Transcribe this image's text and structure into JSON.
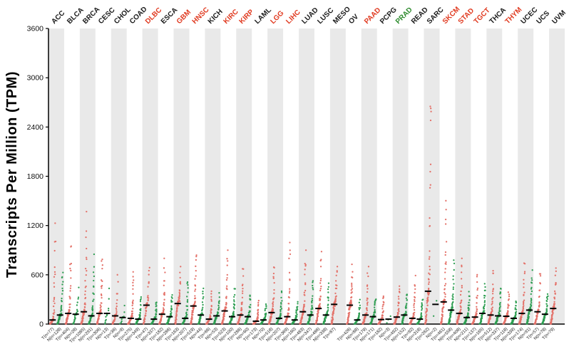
{
  "chart_data": {
    "type": "scatter",
    "title": "",
    "ylabel": "Transcripts Per Million (TPM)",
    "ylim": [
      0,
      3600
    ],
    "yticks": [
      0,
      600,
      1200,
      1800,
      2400,
      3000,
      3600
    ],
    "grid": "alternating-vertical-bands",
    "legend": "none",
    "colors": {
      "tumor_dot": "#e4726a",
      "normal_dot": "#2e9e52",
      "median_bar": "#000000",
      "band": "#e9e9e9",
      "label_red": "#e03a20",
      "label_green": "#2e8b2e",
      "label_black": "#1a1a1a",
      "tick_text": "#111111",
      "bottom_label": "#222222"
    },
    "categories": [
      {
        "name": "ACC",
        "label_color": "black",
        "tumor": {
          "label": "T(n=77)",
          "n": 77,
          "median": 50,
          "max": 1250
        },
        "normal": {
          "label": "N(n=128)",
          "n": 128,
          "median": 110,
          "max": 700
        }
      },
      {
        "name": "BLCA",
        "label_color": "black",
        "tumor": {
          "label": "T(n=404)",
          "n": 404,
          "median": 130,
          "max": 1000
        },
        "normal": {
          "label": "N(n=28)",
          "n": 28,
          "median": 120,
          "max": 450
        }
      },
      {
        "name": "BRCA",
        "label_color": "black",
        "tumor": {
          "label": "T(n=1085)",
          "n": 1085,
          "median": 150,
          "max": 1400
        },
        "normal": {
          "label": "N(n=291)",
          "n": 291,
          "median": 100,
          "max": 850
        }
      },
      {
        "name": "CESC",
        "label_color": "black",
        "tumor": {
          "label": "T(n=306)",
          "n": 306,
          "median": 130,
          "max": 900
        },
        "normal": {
          "label": "N(n=13)",
          "n": 13,
          "median": 130,
          "max": 500
        }
      },
      {
        "name": "CHOL",
        "label_color": "black",
        "tumor": {
          "label": "T(n=36)",
          "n": 36,
          "median": 100,
          "max": 600
        },
        "normal": {
          "label": "N(n=9)",
          "n": 9,
          "median": 80,
          "max": 300
        }
      },
      {
        "name": "COAD",
        "label_color": "black",
        "tumor": {
          "label": "T(n=275)",
          "n": 275,
          "median": 70,
          "max": 700
        },
        "normal": {
          "label": "N(n=349)",
          "n": 349,
          "median": 60,
          "max": 350
        }
      },
      {
        "name": "DLBC",
        "label_color": "red",
        "tumor": {
          "label": "T(n=47)",
          "n": 47,
          "median": 230,
          "max": 800
        },
        "normal": {
          "label": "N(n=337)",
          "n": 337,
          "median": 60,
          "max": 300
        }
      },
      {
        "name": "ESCA",
        "label_color": "black",
        "tumor": {
          "label": "T(n=182)",
          "n": 182,
          "median": 120,
          "max": 800
        },
        "normal": {
          "label": "N(n=286)",
          "n": 286,
          "median": 90,
          "max": 400
        }
      },
      {
        "name": "GBM",
        "label_color": "red",
        "tumor": {
          "label": "T(n=163)",
          "n": 163,
          "median": 250,
          "max": 700
        },
        "normal": {
          "label": "N(n=207)",
          "n": 207,
          "median": 70,
          "max": 600
        }
      },
      {
        "name": "HNSC",
        "label_color": "red",
        "tumor": {
          "label": "T(n=519)",
          "n": 519,
          "median": 220,
          "max": 950
        },
        "normal": {
          "label": "N(n=44)",
          "n": 44,
          "median": 110,
          "max": 500
        }
      },
      {
        "name": "KICH",
        "label_color": "black",
        "tumor": {
          "label": "T(n=66)",
          "n": 66,
          "median": 60,
          "max": 400
        },
        "normal": {
          "label": "N(n=53)",
          "n": 53,
          "median": 100,
          "max": 380
        }
      },
      {
        "name": "KIRC",
        "label_color": "red",
        "tumor": {
          "label": "T(n=523)",
          "n": 523,
          "median": 160,
          "max": 900
        },
        "normal": {
          "label": "N(n=100)",
          "n": 100,
          "median": 90,
          "max": 450
        }
      },
      {
        "name": "KIRP",
        "label_color": "red",
        "tumor": {
          "label": "T(n=286)",
          "n": 286,
          "median": 110,
          "max": 700
        },
        "normal": {
          "label": "N(n=60)",
          "n": 60,
          "median": 90,
          "max": 400
        }
      },
      {
        "name": "LAML",
        "label_color": "black",
        "tumor": {
          "label": "T(n=173)",
          "n": 173,
          "median": 35,
          "max": 300
        },
        "normal": {
          "label": "N(n=70)",
          "n": 70,
          "median": 50,
          "max": 250
        }
      },
      {
        "name": "LGG",
        "label_color": "red",
        "tumor": {
          "label": "T(n=518)",
          "n": 518,
          "median": 140,
          "max": 750
        },
        "normal": {
          "label": "N(n=207)",
          "n": 207,
          "median": 70,
          "max": 400
        }
      },
      {
        "name": "LIHC",
        "label_color": "red",
        "tumor": {
          "label": "T(n=369)",
          "n": 369,
          "median": 90,
          "max": 1050
        },
        "normal": {
          "label": "N(n=160)",
          "n": 160,
          "median": 50,
          "max": 300
        }
      },
      {
        "name": "LUAD",
        "label_color": "black",
        "tumor": {
          "label": "T(n=483)",
          "n": 483,
          "median": 150,
          "max": 900
        },
        "normal": {
          "label": "N(n=347)",
          "n": 347,
          "median": 110,
          "max": 600
        }
      },
      {
        "name": "LUSC",
        "label_color": "black",
        "tumor": {
          "label": "T(n=486)",
          "n": 486,
          "median": 190,
          "max": 900
        },
        "normal": {
          "label": "N(n=338)",
          "n": 338,
          "median": 110,
          "max": 500
        }
      },
      {
        "name": "MESO",
        "label_color": "black",
        "tumor": {
          "label": "T(n=87)",
          "n": 87,
          "median": 240,
          "max": 700
        },
        "normal": null
      },
      {
        "name": "OV",
        "label_color": "black",
        "tumor": {
          "label": "T(n=426)",
          "n": 426,
          "median": 230,
          "max": 750
        },
        "normal": {
          "label": "N(n=88)",
          "n": 88,
          "median": 50,
          "max": 300
        }
      },
      {
        "name": "PAAD",
        "label_color": "red",
        "tumor": {
          "label": "T(n=179)",
          "n": 179,
          "median": 110,
          "max": 700
        },
        "normal": {
          "label": "N(n=171)",
          "n": 171,
          "median": 90,
          "max": 350
        }
      },
      {
        "name": "PCPG",
        "label_color": "black",
        "tumor": {
          "label": "T(n=182)",
          "n": 182,
          "median": 55,
          "max": 400
        },
        "normal": {
          "label": "N(n=3)",
          "n": 3,
          "median": 60,
          "max": 250
        }
      },
      {
        "name": "PRAD",
        "label_color": "green",
        "tumor": {
          "label": "T(n=492)",
          "n": 492,
          "median": 85,
          "max": 500
        },
        "normal": {
          "label": "N(n=152)",
          "n": 152,
          "median": 110,
          "max": 400
        }
      },
      {
        "name": "READ",
        "label_color": "black",
        "tumor": {
          "label": "T(n=92)",
          "n": 92,
          "median": 70,
          "max": 600
        },
        "normal": {
          "label": "N(n=318)",
          "n": 318,
          "median": 60,
          "max": 350
        }
      },
      {
        "name": "SARC",
        "label_color": "black",
        "tumor": {
          "label": "T(n=262)",
          "n": 262,
          "median": 400,
          "max": 3100
        },
        "normal": {
          "label": "N(n=2)",
          "n": 2,
          "median": 240,
          "max": 700
        }
      },
      {
        "name": "SKCM",
        "label_color": "red",
        "tumor": {
          "label": "T(n=461)",
          "n": 461,
          "median": 270,
          "max": 1600
        },
        "normal": {
          "label": "N(n=558)",
          "n": 558,
          "median": 170,
          "max": 800
        }
      },
      {
        "name": "STAD",
        "label_color": "red",
        "tumor": {
          "label": "T(n=408)",
          "n": 408,
          "median": 130,
          "max": 800
        },
        "normal": {
          "label": "N(n=211)",
          "n": 211,
          "median": 80,
          "max": 400
        }
      },
      {
        "name": "TGCT",
        "label_color": "red",
        "tumor": {
          "label": "T(n=137)",
          "n": 137,
          "median": 85,
          "max": 600
        },
        "normal": {
          "label": "N(n=165)",
          "n": 165,
          "median": 130,
          "max": 500
        }
      },
      {
        "name": "THCA",
        "label_color": "black",
        "tumor": {
          "label": "T(n=512)",
          "n": 512,
          "median": 110,
          "max": 700
        },
        "normal": {
          "label": "N(n=337)",
          "n": 337,
          "median": 100,
          "max": 500
        }
      },
      {
        "name": "THYM",
        "label_color": "red",
        "tumor": {
          "label": "T(n=118)",
          "n": 118,
          "median": 95,
          "max": 400
        },
        "normal": {
          "label": "N(n=339)",
          "n": 339,
          "median": 70,
          "max": 300
        }
      },
      {
        "name": "UCEC",
        "label_color": "black",
        "tumor": {
          "label": "T(n=174)",
          "n": 174,
          "median": 130,
          "max": 800
        },
        "normal": {
          "label": "N(n=91)",
          "n": 91,
          "median": 170,
          "max": 700
        }
      },
      {
        "name": "UCS",
        "label_color": "black",
        "tumor": {
          "label": "T(n=57)",
          "n": 57,
          "median": 150,
          "max": 700
        },
        "normal": {
          "label": "N(n=78)",
          "n": 78,
          "median": 120,
          "max": 400
        }
      },
      {
        "name": "UVM",
        "label_color": "black",
        "tumor": {
          "label": "T(n=79)",
          "n": 79,
          "median": 190,
          "max": 750
        },
        "normal": null
      }
    ]
  }
}
